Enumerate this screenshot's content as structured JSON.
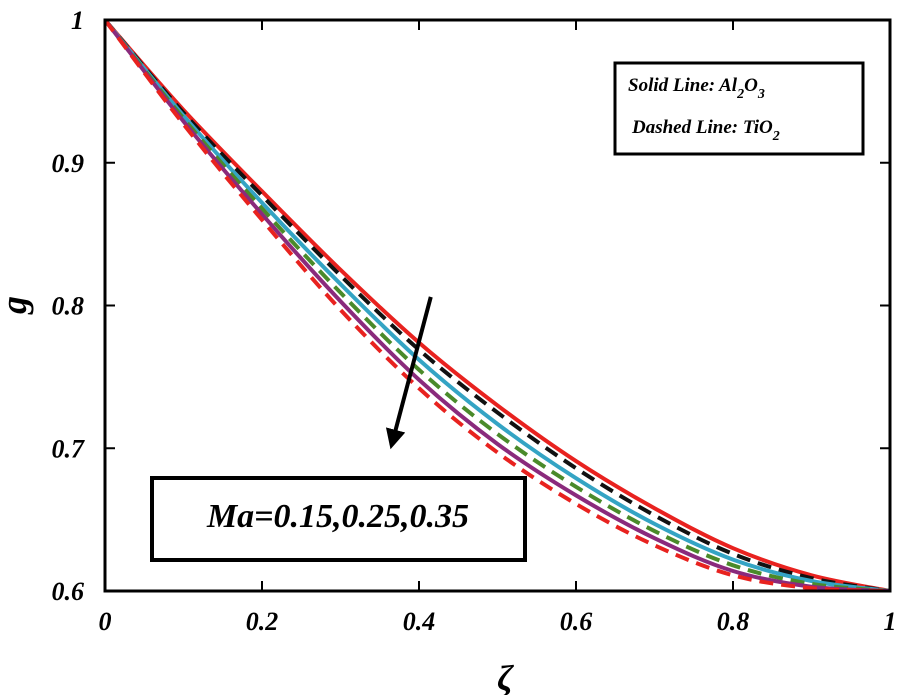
{
  "chart_data": {
    "type": "line",
    "title": "",
    "xlabel": "ζ",
    "ylabel": "g",
    "xlim": [
      0,
      1
    ],
    "ylim": [
      0.6,
      1
    ],
    "xticks": [
      0,
      0.2,
      0.4,
      0.6,
      0.8,
      1
    ],
    "xtick_labels": [
      "0",
      "0.2",
      "0.4",
      "0.6",
      "0.8",
      "1"
    ],
    "yticks": [
      0.6,
      0.7,
      0.8,
      0.9,
      1
    ],
    "ytick_labels": [
      "0.6",
      "0.7",
      "0.8",
      "0.9",
      "1"
    ],
    "grid": false,
    "x": [
      0,
      0.1,
      0.2,
      0.3,
      0.4,
      0.5,
      0.6,
      0.7,
      0.8,
      0.9,
      1
    ],
    "series": [
      {
        "name": "Al2O3, Ma=0.15",
        "style": "solid",
        "color": "#e8221f",
        "values": [
          1.0,
          0.937,
          0.88,
          0.825,
          0.774,
          0.73,
          0.691,
          0.658,
          0.63,
          0.611,
          0.6
        ]
      },
      {
        "name": "TiO2, Ma=0.15",
        "style": "dashed",
        "color": "#111111",
        "values": [
          1.0,
          0.935,
          0.877,
          0.821,
          0.769,
          0.725,
          0.686,
          0.653,
          0.626,
          0.609,
          0.6
        ]
      },
      {
        "name": "Al2O3, Ma=0.25",
        "style": "solid",
        "color": "#34a4c4",
        "values": [
          1.0,
          0.933,
          0.872,
          0.815,
          0.762,
          0.717,
          0.679,
          0.647,
          0.622,
          0.607,
          0.6
        ]
      },
      {
        "name": "TiO2, Ma=0.25",
        "style": "dashed",
        "color": "#4a8a2a",
        "values": [
          1.0,
          0.931,
          0.868,
          0.809,
          0.755,
          0.71,
          0.673,
          0.642,
          0.618,
          0.605,
          0.6
        ]
      },
      {
        "name": "Al2O3, Ma=0.35",
        "style": "solid",
        "color": "#8a2a7c",
        "values": [
          1.0,
          0.929,
          0.864,
          0.803,
          0.748,
          0.703,
          0.667,
          0.637,
          0.614,
          0.603,
          0.6
        ]
      },
      {
        "name": "TiO2, Ma=0.35",
        "style": "dashed",
        "color": "#e8221f",
        "values": [
          1.0,
          0.927,
          0.86,
          0.797,
          0.742,
          0.697,
          0.661,
          0.632,
          0.611,
          0.602,
          0.6
        ]
      }
    ],
    "legend": {
      "solid_label": "Solid Line: Al",
      "solid_sub1": "2",
      "solid_mid": "O",
      "solid_sub2": "3",
      "dashed_label": "Dashed Line: TiO",
      "dashed_sub": "2",
      "placement": "top-right"
    },
    "annotation": {
      "text": "Ma=0.15,0.25,0.35",
      "arrow_from": [
        0.415,
        0.806
      ],
      "arrow_to": [
        0.365,
        0.702
      ]
    }
  }
}
